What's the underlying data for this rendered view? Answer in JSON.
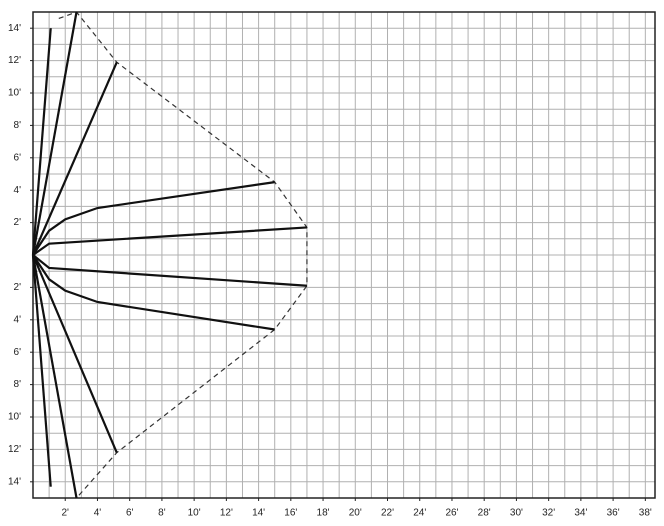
{
  "chart_data": {
    "type": "line",
    "xlim": [
      0,
      38.6
    ],
    "ylim": [
      -15,
      15
    ],
    "xticks": [
      {
        "value": 2,
        "label": "2'"
      },
      {
        "value": 4,
        "label": "4'"
      },
      {
        "value": 6,
        "label": "6'"
      },
      {
        "value": 8,
        "label": "8'"
      },
      {
        "value": 10,
        "label": "10'"
      },
      {
        "value": 12,
        "label": "12'"
      },
      {
        "value": 14,
        "label": "14'"
      },
      {
        "value": 16,
        "label": "16'"
      },
      {
        "value": 18,
        "label": "18'"
      },
      {
        "value": 20,
        "label": "20'"
      },
      {
        "value": 22,
        "label": "22'"
      },
      {
        "value": 24,
        "label": "24'"
      },
      {
        "value": 26,
        "label": "26'"
      },
      {
        "value": 28,
        "label": "28'"
      },
      {
        "value": 30,
        "label": "30'"
      },
      {
        "value": 32,
        "label": "32'"
      },
      {
        "value": 34,
        "label": "34'"
      },
      {
        "value": 36,
        "label": "36'"
      },
      {
        "value": 38,
        "label": "38'"
      }
    ],
    "yticks": [
      {
        "value": 14,
        "label": "14'"
      },
      {
        "value": 12,
        "label": "12'"
      },
      {
        "value": 10,
        "label": "10'"
      },
      {
        "value": 8,
        "label": "8'"
      },
      {
        "value": 6,
        "label": "6'"
      },
      {
        "value": 4,
        "label": "4'"
      },
      {
        "value": 2,
        "label": "2'"
      },
      {
        "value": -2,
        "label": "2'"
      },
      {
        "value": -4,
        "label": "4'"
      },
      {
        "value": -6,
        "label": "6'"
      },
      {
        "value": -8,
        "label": "8'"
      },
      {
        "value": -10,
        "label": "10'"
      },
      {
        "value": -12,
        "label": "12'"
      },
      {
        "value": -14,
        "label": "14'"
      }
    ],
    "grid": true,
    "rays": [
      {
        "x": [
          0,
          1.1
        ],
        "y": [
          0,
          14
        ]
      },
      {
        "x": [
          0,
          2.7
        ],
        "y": [
          0,
          15
        ]
      },
      {
        "x": [
          0,
          5.2
        ],
        "y": [
          0,
          11.9
        ]
      },
      {
        "x": [
          0,
          1,
          2,
          4,
          15
        ],
        "y": [
          0,
          1.5,
          2.2,
          2.9,
          4.5
        ]
      },
      {
        "x": [
          0,
          1,
          17
        ],
        "y": [
          0,
          0.7,
          1.7
        ]
      },
      {
        "x": [
          0,
          1,
          17
        ],
        "y": [
          0,
          -0.8,
          -1.9
        ]
      },
      {
        "x": [
          0,
          1,
          2,
          4,
          15
        ],
        "y": [
          0,
          -1.5,
          -2.2,
          -2.9,
          -4.6
        ]
      },
      {
        "x": [
          0,
          5.2
        ],
        "y": [
          0,
          -12.2
        ]
      },
      {
        "x": [
          0,
          2.7
        ],
        "y": [
          0,
          -15
        ]
      },
      {
        "x": [
          0,
          1.1
        ],
        "y": [
          0,
          -14.3
        ]
      }
    ],
    "boundary": {
      "x": [
        1.6,
        2.7,
        5.2,
        15,
        17,
        17,
        15,
        5.2,
        2.7
      ],
      "y": [
        14.6,
        15,
        11.9,
        4.5,
        1.7,
        -1.9,
        -4.6,
        -12.2,
        -15
      ]
    }
  }
}
